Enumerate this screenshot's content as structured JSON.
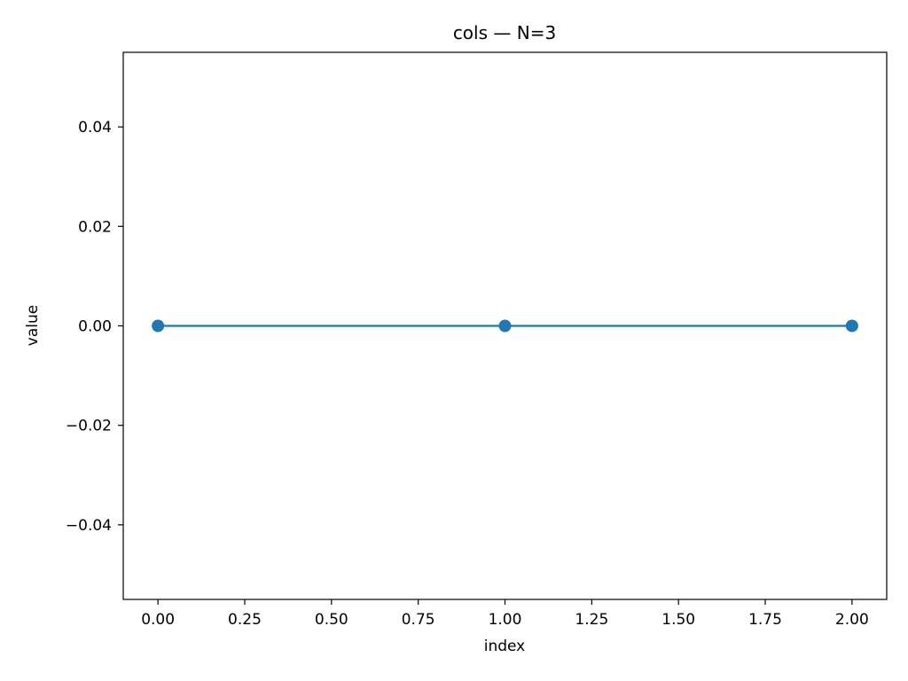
{
  "chart_data": {
    "type": "line",
    "title": "cols — N=3",
    "xlabel": "index",
    "ylabel": "value",
    "x": [
      0,
      1,
      2
    ],
    "series": [
      {
        "values": [
          0,
          0,
          0
        ],
        "color": "#1f77b4",
        "marker": "circle"
      }
    ],
    "xlim": [
      -0.1,
      2.1
    ],
    "ylim": [
      -0.055,
      0.055
    ],
    "xticks": [
      0.0,
      0.25,
      0.5,
      0.75,
      1.0,
      1.25,
      1.5,
      1.75,
      2.0
    ],
    "xtick_labels": [
      "0.00",
      "0.25",
      "0.50",
      "0.75",
      "1.00",
      "1.25",
      "1.50",
      "1.75",
      "2.00"
    ],
    "yticks": [
      -0.04,
      -0.02,
      0.0,
      0.02,
      0.04
    ],
    "ytick_labels": [
      "−0.04",
      "−0.02",
      "0.00",
      "0.02",
      "0.04"
    ],
    "grid": false,
    "legend": false
  }
}
